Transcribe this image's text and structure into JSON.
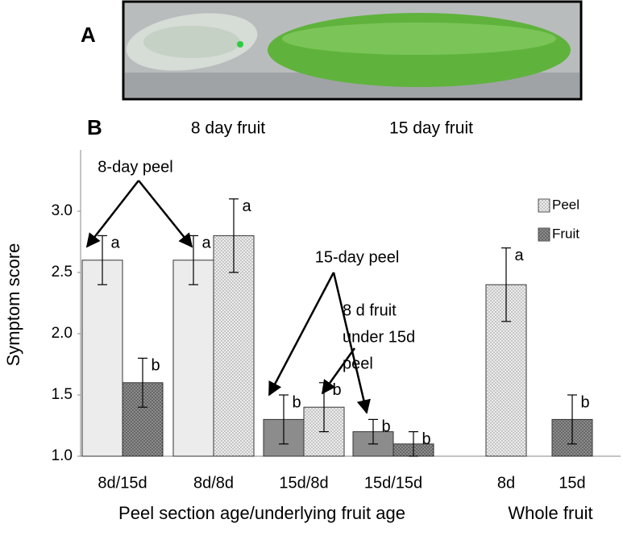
{
  "panel_a": {
    "label": "A",
    "captions": [
      "8 day fruit",
      "15 day fruit"
    ]
  },
  "chart_data": {
    "type": "bar",
    "panel_label": "B",
    "y_label": "Symptom score",
    "x_labels": [
      "Peel section age/underlying fruit age",
      "Whole fruit"
    ],
    "categories": [
      "8d/15d",
      "8d/8d",
      "15d/8d",
      "15d/15d",
      "8d",
      "15d"
    ],
    "series": [
      {
        "name": "Peel",
        "color": "#ececec",
        "dotted": true,
        "values": [
          2.6,
          2.6,
          1.3,
          1.2,
          2.4,
          null
        ],
        "errors": [
          0.2,
          0.2,
          0.2,
          0.1,
          0.3,
          null
        ],
        "letters": [
          "a",
          "a",
          "b",
          "b",
          "a",
          null
        ],
        "bar_colors": [
          "#ececec",
          "#ececec",
          "#8c8c8c",
          "#8c8c8c",
          "#ececec",
          null
        ],
        "bar_dotted": [
          false,
          false,
          false,
          false,
          true,
          null
        ]
      },
      {
        "name": "Fruit",
        "color": "#8c8c8c",
        "dotted": true,
        "values": [
          1.6,
          2.8,
          1.4,
          1.1,
          null,
          1.3
        ],
        "errors": [
          0.2,
          0.3,
          0.2,
          0.1,
          null,
          0.2
        ],
        "letters": [
          "b",
          "a",
          "b",
          "b",
          null,
          "b"
        ],
        "bar_colors": [
          "#8c8c8c",
          "#ececec",
          "#ececec",
          "#8c8c8c",
          null,
          "#8c8c8c"
        ],
        "bar_dotted": [
          true,
          true,
          true,
          true,
          null,
          true
        ]
      }
    ],
    "ylim": [
      1.0,
      3.5
    ],
    "yticks": [
      {
        "value": 1.0,
        "label": "1.0"
      },
      1.5,
      {
        "value": 2.0,
        "label": "2.0"
      },
      2.5,
      {
        "value": 3.0,
        "label": "3.0"
      }
    ],
    "grid": false,
    "annotations": [
      "8-day peel",
      "15-day peel",
      "8 d fruit",
      "under 15d",
      "peel"
    ]
  }
}
